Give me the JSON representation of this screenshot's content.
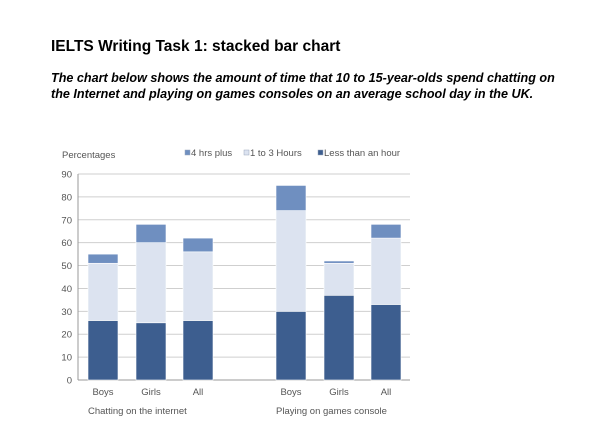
{
  "heading": "IELTS Writing Task 1: stacked bar chart",
  "description": "The chart below shows the amount of time that 10 to 15-year-olds spend chatting on the Internet and playing on games consoles on an average school day in the UK.",
  "chart_data": {
    "type": "bar",
    "stacked": true,
    "ylabel": "Percentages",
    "ylim": [
      0,
      90
    ],
    "yticks": [
      0,
      10,
      20,
      30,
      40,
      50,
      60,
      70,
      80,
      90
    ],
    "grid": true,
    "legend_position": "top",
    "categories": [
      "Boys",
      "Girls",
      "All",
      "Boys",
      "Girls",
      "All"
    ],
    "groups": [
      {
        "label": "Chatting on the internet",
        "categories": [
          "Boys",
          "Girls",
          "All"
        ]
      },
      {
        "label": "Playing on games console",
        "categories": [
          "Boys",
          "Girls",
          "All"
        ]
      }
    ],
    "series": [
      {
        "name": "Less than an hour",
        "color": "#3d5e8f",
        "values": [
          26,
          25,
          26,
          30,
          37,
          33
        ]
      },
      {
        "name": "1 to 3 Hours",
        "color": "#dce3f0",
        "values": [
          25,
          35,
          30,
          44,
          14,
          29
        ]
      },
      {
        "name": "4 hrs plus",
        "color": "#6f8fc0",
        "values": [
          4,
          8,
          6,
          11,
          1,
          6
        ]
      }
    ],
    "legend_order": [
      "4 hrs plus",
      "1 to 3 Hours",
      "Less than an hour"
    ]
  }
}
